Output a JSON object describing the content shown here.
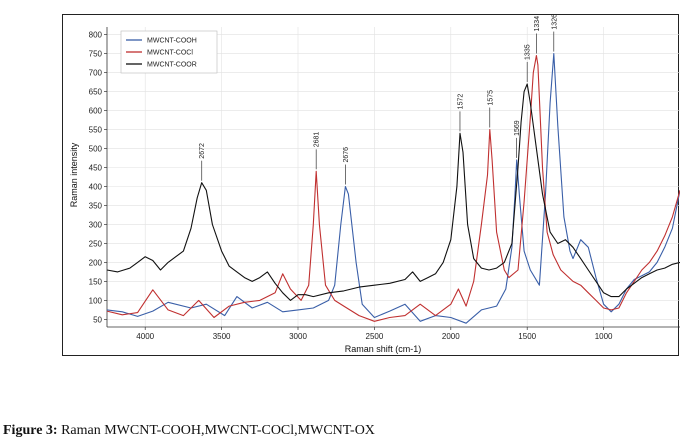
{
  "caption": {
    "label": "Figure 3:",
    "text": "Raman MWCNT-COOH,MWCNT-COCl,MWCNT-OX"
  },
  "chart_data": {
    "type": "line",
    "title": "",
    "xlabel": "Raman shift (cm-1)",
    "ylabel": "Raman intensity",
    "xlim": [
      4250,
      500
    ],
    "ylim": [
      30,
      820
    ],
    "x_reversed": true,
    "x_ticks": [
      4000,
      3500,
      3000,
      2500,
      2000,
      1500,
      1000
    ],
    "y_ticks": [
      50,
      100,
      150,
      200,
      250,
      300,
      350,
      400,
      450,
      500,
      550,
      600,
      650,
      700,
      750,
      800
    ],
    "grid": true,
    "legend_position": "top-left",
    "series": [
      {
        "name": "MWCNT-COOH",
        "color": "#3a5fa8",
        "points": [
          [
            4250,
            75
          ],
          [
            4150,
            70
          ],
          [
            4050,
            58
          ],
          [
            3950,
            72
          ],
          [
            3850,
            95
          ],
          [
            3700,
            80
          ],
          [
            3600,
            90
          ],
          [
            3480,
            60
          ],
          [
            3400,
            110
          ],
          [
            3300,
            80
          ],
          [
            3200,
            95
          ],
          [
            3100,
            70
          ],
          [
            3000,
            75
          ],
          [
            2900,
            80
          ],
          [
            2800,
            100
          ],
          [
            2760,
            140
          ],
          [
            2720,
            300
          ],
          [
            2690,
            400
          ],
          [
            2670,
            380
          ],
          [
            2620,
            200
          ],
          [
            2580,
            90
          ],
          [
            2500,
            55
          ],
          [
            2400,
            72
          ],
          [
            2300,
            90
          ],
          [
            2200,
            45
          ],
          [
            2100,
            60
          ],
          [
            2000,
            55
          ],
          [
            1900,
            40
          ],
          [
            1800,
            75
          ],
          [
            1700,
            85
          ],
          [
            1640,
            130
          ],
          [
            1600,
            240
          ],
          [
            1580,
            380
          ],
          [
            1569,
            470
          ],
          [
            1550,
            370
          ],
          [
            1520,
            230
          ],
          [
            1480,
            180
          ],
          [
            1420,
            140
          ],
          [
            1380,
            380
          ],
          [
            1350,
            620
          ],
          [
            1326,
            750
          ],
          [
            1300,
            560
          ],
          [
            1260,
            320
          ],
          [
            1220,
            230
          ],
          [
            1200,
            210
          ],
          [
            1150,
            260
          ],
          [
            1100,
            240
          ],
          [
            1050,
            160
          ],
          [
            1000,
            90
          ],
          [
            950,
            70
          ],
          [
            900,
            90
          ],
          [
            850,
            130
          ],
          [
            800,
            155
          ],
          [
            750,
            165
          ],
          [
            700,
            175
          ],
          [
            650,
            200
          ],
          [
            600,
            240
          ],
          [
            550,
            290
          ],
          [
            500,
            390
          ]
        ]
      },
      {
        "name": "MWCNT-COCl",
        "color": "#c03030",
        "points": [
          [
            4250,
            72
          ],
          [
            4150,
            62
          ],
          [
            4050,
            68
          ],
          [
            3950,
            128
          ],
          [
            3850,
            75
          ],
          [
            3750,
            60
          ],
          [
            3650,
            100
          ],
          [
            3550,
            55
          ],
          [
            3450,
            85
          ],
          [
            3350,
            95
          ],
          [
            3250,
            100
          ],
          [
            3150,
            120
          ],
          [
            3100,
            170
          ],
          [
            3050,
            130
          ],
          [
            2980,
            100
          ],
          [
            2930,
            140
          ],
          [
            2900,
            300
          ],
          [
            2881,
            440
          ],
          [
            2860,
            300
          ],
          [
            2820,
            140
          ],
          [
            2760,
            100
          ],
          [
            2700,
            85
          ],
          [
            2600,
            60
          ],
          [
            2500,
            45
          ],
          [
            2400,
            55
          ],
          [
            2300,
            60
          ],
          [
            2200,
            90
          ],
          [
            2100,
            60
          ],
          [
            2000,
            90
          ],
          [
            1950,
            130
          ],
          [
            1900,
            85
          ],
          [
            1850,
            150
          ],
          [
            1800,
            300
          ],
          [
            1760,
            430
          ],
          [
            1745,
            550
          ],
          [
            1730,
            470
          ],
          [
            1700,
            280
          ],
          [
            1650,
            180
          ],
          [
            1620,
            160
          ],
          [
            1560,
            180
          ],
          [
            1520,
            360
          ],
          [
            1480,
            580
          ],
          [
            1460,
            700
          ],
          [
            1440,
            745
          ],
          [
            1430,
            720
          ],
          [
            1400,
            450
          ],
          [
            1370,
            280
          ],
          [
            1330,
            220
          ],
          [
            1280,
            180
          ],
          [
            1200,
            150
          ],
          [
            1150,
            140
          ],
          [
            1100,
            120
          ],
          [
            1050,
            100
          ],
          [
            1000,
            80
          ],
          [
            950,
            75
          ],
          [
            900,
            80
          ],
          [
            850,
            120
          ],
          [
            800,
            150
          ],
          [
            750,
            180
          ],
          [
            700,
            200
          ],
          [
            650,
            230
          ],
          [
            600,
            270
          ],
          [
            550,
            320
          ],
          [
            500,
            390
          ]
        ]
      },
      {
        "name": "MWCNT-COOR",
        "color": "#111111",
        "points": [
          [
            4250,
            180
          ],
          [
            4180,
            175
          ],
          [
            4100,
            185
          ],
          [
            4050,
            200
          ],
          [
            4000,
            215
          ],
          [
            3950,
            205
          ],
          [
            3900,
            180
          ],
          [
            3850,
            200
          ],
          [
            3800,
            215
          ],
          [
            3750,
            230
          ],
          [
            3700,
            290
          ],
          [
            3660,
            370
          ],
          [
            3630,
            410
          ],
          [
            3600,
            390
          ],
          [
            3560,
            300
          ],
          [
            3500,
            230
          ],
          [
            3450,
            190
          ],
          [
            3400,
            175
          ],
          [
            3350,
            160
          ],
          [
            3300,
            150
          ],
          [
            3250,
            160
          ],
          [
            3200,
            175
          ],
          [
            3150,
            145
          ],
          [
            3100,
            120
          ],
          [
            3050,
            100
          ],
          [
            3000,
            115
          ],
          [
            2950,
            115
          ],
          [
            2900,
            110
          ],
          [
            2800,
            120
          ],
          [
            2700,
            125
          ],
          [
            2600,
            135
          ],
          [
            2500,
            140
          ],
          [
            2400,
            145
          ],
          [
            2300,
            155
          ],
          [
            2250,
            175
          ],
          [
            2200,
            150
          ],
          [
            2150,
            160
          ],
          [
            2100,
            170
          ],
          [
            2050,
            200
          ],
          [
            2000,
            260
          ],
          [
            1960,
            400
          ],
          [
            1940,
            540
          ],
          [
            1920,
            490
          ],
          [
            1890,
            300
          ],
          [
            1850,
            210
          ],
          [
            1800,
            185
          ],
          [
            1750,
            180
          ],
          [
            1700,
            185
          ],
          [
            1650,
            200
          ],
          [
            1600,
            250
          ],
          [
            1560,
            450
          ],
          [
            1540,
            570
          ],
          [
            1520,
            650
          ],
          [
            1500,
            670
          ],
          [
            1480,
            620
          ],
          [
            1440,
            500
          ],
          [
            1400,
            380
          ],
          [
            1350,
            280
          ],
          [
            1300,
            250
          ],
          [
            1250,
            260
          ],
          [
            1200,
            240
          ],
          [
            1150,
            210
          ],
          [
            1100,
            180
          ],
          [
            1050,
            150
          ],
          [
            1000,
            120
          ],
          [
            950,
            110
          ],
          [
            900,
            110
          ],
          [
            850,
            130
          ],
          [
            800,
            145
          ],
          [
            750,
            160
          ],
          [
            700,
            170
          ],
          [
            650,
            180
          ],
          [
            600,
            185
          ],
          [
            550,
            195
          ],
          [
            500,
            200
          ]
        ]
      }
    ],
    "annotations": [
      {
        "text": "2672",
        "x": 3630,
        "y": 410
      },
      {
        "text": "2681",
        "x": 2881,
        "y": 440
      },
      {
        "text": "2676",
        "x": 2690,
        "y": 400
      },
      {
        "text": "1572",
        "x": 1940,
        "y": 540
      },
      {
        "text": "1575",
        "x": 1745,
        "y": 550
      },
      {
        "text": "1569",
        "x": 1569,
        "y": 470
      },
      {
        "text": "1335",
        "x": 1500,
        "y": 670
      },
      {
        "text": "1334",
        "x": 1440,
        "y": 745
      },
      {
        "text": "1326",
        "x": 1326,
        "y": 750
      }
    ]
  }
}
